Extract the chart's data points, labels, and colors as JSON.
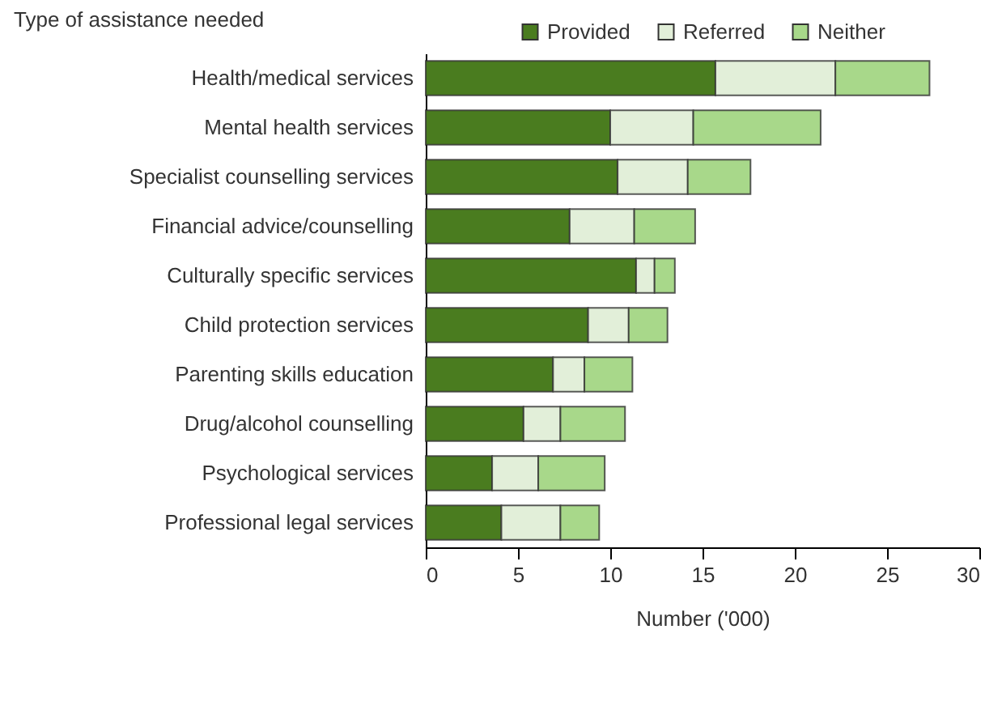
{
  "chart_data": {
    "type": "bar",
    "orientation": "horizontal",
    "stacked": true,
    "ylabel": "Type of assistance needed",
    "xlabel": "Number ('000)",
    "categories": [
      "Health/medical services",
      "Mental health services",
      "Specialist counselling services",
      "Financial advice/counselling",
      "Culturally specific services",
      "Child protection services",
      "Parenting skills education",
      "Drug/alcohol counselling",
      "Psychological services",
      "Professional legal services"
    ],
    "series": [
      {
        "name": "Provided",
        "color": "#4a7c1f",
        "values": [
          15.7,
          10.0,
          10.4,
          7.8,
          11.4,
          8.8,
          6.9,
          5.3,
          3.6,
          4.1
        ]
      },
      {
        "name": "Referred",
        "color": "#e2efd9",
        "values": [
          6.5,
          4.5,
          3.8,
          3.5,
          1.0,
          2.2,
          1.7,
          2.0,
          2.5,
          3.2
        ]
      },
      {
        "name": "Neither",
        "color": "#a8d88a",
        "values": [
          5.1,
          6.9,
          3.4,
          3.3,
          1.1,
          2.1,
          2.6,
          3.5,
          3.6,
          2.1
        ]
      }
    ],
    "xlim": [
      0,
      30
    ],
    "xticks": [
      0,
      5,
      10,
      15,
      20,
      25,
      30
    ],
    "grid": false,
    "legend": "top"
  }
}
